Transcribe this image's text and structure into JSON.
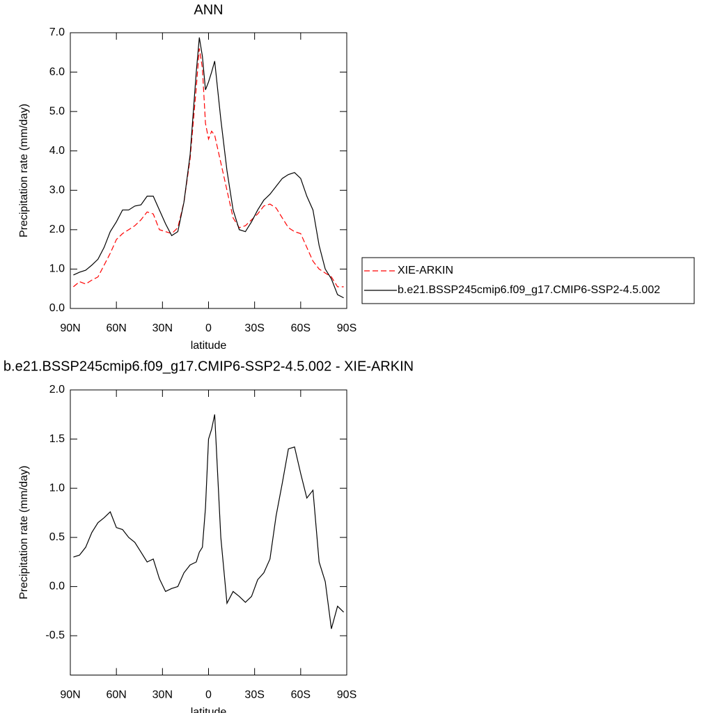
{
  "chart_data": [
    {
      "type": "line",
      "title": "ANN",
      "xlabel": "latitude",
      "ylabel": "Precipitation rate (mm/day)",
      "x": [
        88,
        84,
        80,
        76,
        72,
        68,
        64,
        60,
        56,
        52,
        48,
        44,
        40,
        36,
        32,
        28,
        24,
        20,
        16,
        12,
        8,
        6,
        4,
        2,
        0,
        -2,
        -4,
        -8,
        -12,
        -16,
        -20,
        -24,
        -28,
        -32,
        -36,
        -40,
        -44,
        -48,
        -52,
        -56,
        -60,
        -64,
        -68,
        -72,
        -76,
        -80,
        -84,
        -88
      ],
      "series": [
        {
          "name": "XIE-ARKIN",
          "color": "#ff0000",
          "dashed": true,
          "values": [
            0.55,
            0.68,
            0.62,
            0.72,
            0.8,
            1.1,
            1.4,
            1.75,
            1.9,
            2.0,
            2.1,
            2.25,
            2.45,
            2.4,
            2.0,
            1.95,
            1.9,
            2.05,
            2.7,
            3.8,
            5.6,
            6.6,
            6.1,
            4.7,
            4.3,
            4.5,
            4.4,
            3.7,
            3.0,
            2.3,
            2.05,
            2.1,
            2.25,
            2.4,
            2.6,
            2.65,
            2.55,
            2.3,
            2.05,
            1.95,
            1.9,
            1.55,
            1.2,
            1.0,
            0.9,
            0.8,
            0.55,
            0.55
          ]
        },
        {
          "name": "b.e21.BSSP245cmip6.f09_g17.CMIP6-SSP2-4.5.002",
          "color": "#000000",
          "dashed": false,
          "values": [
            0.85,
            0.92,
            0.97,
            1.1,
            1.25,
            1.55,
            1.95,
            2.2,
            2.5,
            2.5,
            2.6,
            2.63,
            2.85,
            2.85,
            2.5,
            2.15,
            1.85,
            1.95,
            2.7,
            3.9,
            6.0,
            6.88,
            6.4,
            5.55,
            5.75,
            6.0,
            6.28,
            4.8,
            3.5,
            2.5,
            2.0,
            1.95,
            2.2,
            2.5,
            2.75,
            2.9,
            3.1,
            3.3,
            3.4,
            3.45,
            3.3,
            2.85,
            2.5,
            1.6,
            1.0,
            0.75,
            0.35,
            0.27
          ]
        }
      ],
      "xlim": [
        90,
        -90
      ],
      "xticks": [
        {
          "value": 90,
          "label": "90N"
        },
        {
          "value": 60,
          "label": "60N"
        },
        {
          "value": 30,
          "label": "30N"
        },
        0,
        {
          "value": -30,
          "label": "30S"
        },
        {
          "value": -60,
          "label": "60S"
        },
        {
          "value": -90,
          "label": "90S"
        }
      ],
      "ylim": [
        0,
        7
      ],
      "yticks": [
        {
          "value": 0,
          "label": "0.0"
        },
        {
          "value": 1,
          "label": "1.0"
        },
        {
          "value": 2,
          "label": "2.0"
        },
        {
          "value": 3,
          "label": "3.0"
        },
        {
          "value": 4,
          "label": "4.0"
        },
        {
          "value": 5,
          "label": "5.0"
        },
        {
          "value": 6,
          "label": "6.0"
        },
        {
          "value": 7,
          "label": "7.0"
        }
      ],
      "legend": "right"
    },
    {
      "type": "line",
      "title": "b.e21.BSSP245cmip6.f09_g17.CMIP6-SSP2-4.5.002 - XIE-ARKIN",
      "xlabel": "latitude",
      "ylabel": "Precipitation rate (mm/day)",
      "x": [
        88,
        84,
        80,
        76,
        72,
        68,
        64,
        60,
        56,
        52,
        48,
        44,
        40,
        36,
        32,
        28,
        24,
        20,
        16,
        12,
        8,
        6,
        4,
        2,
        0,
        -2,
        -4,
        -8,
        -12,
        -16,
        -20,
        -24,
        -28,
        -32,
        -36,
        -40,
        -44,
        -48,
        -52,
        -56,
        -60,
        -64,
        -68,
        -72,
        -76,
        -80,
        -84,
        -88
      ],
      "series": [
        {
          "color": "#000000",
          "dashed": false,
          "values": [
            0.3,
            0.32,
            0.4,
            0.55,
            0.65,
            0.7,
            0.76,
            0.6,
            0.58,
            0.5,
            0.45,
            0.35,
            0.25,
            0.28,
            0.08,
            -0.05,
            -0.02,
            0.0,
            0.14,
            0.22,
            0.25,
            0.35,
            0.4,
            0.8,
            1.5,
            1.6,
            1.75,
            0.5,
            -0.17,
            -0.05,
            -0.1,
            -0.16,
            -0.1,
            0.07,
            0.14,
            0.28,
            0.72,
            1.05,
            1.4,
            1.42,
            1.15,
            0.9,
            0.98,
            0.25,
            0.05,
            -0.43,
            -0.2,
            -0.26
          ]
        }
      ],
      "xlim": [
        90,
        -90
      ],
      "xticks": [
        {
          "value": 90,
          "label": "90N"
        },
        {
          "value": 60,
          "label": "60N"
        },
        {
          "value": 30,
          "label": "30N"
        },
        0,
        {
          "value": -30,
          "label": "30S"
        },
        {
          "value": -60,
          "label": "60S"
        },
        {
          "value": -90,
          "label": "90S"
        }
      ],
      "ylim": [
        -0.9,
        2.0
      ],
      "yticks": [
        -0.5,
        {
          "value": 0,
          "label": "0.0"
        },
        0.5,
        {
          "value": 1,
          "label": "1.0"
        },
        1.5,
        {
          "value": 2,
          "label": "2.0"
        }
      ]
    }
  ]
}
